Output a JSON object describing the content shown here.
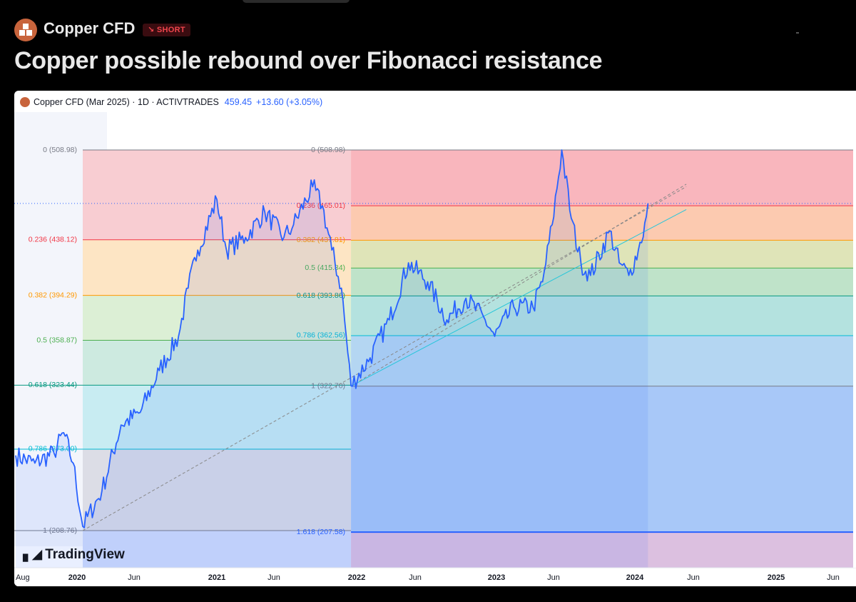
{
  "header": {
    "symbol": "Copper CFD",
    "badge": "↘ SHORT",
    "title": "Copper possible rebound over Fibonacci resistance"
  },
  "legend": {
    "instrument": "Copper CFD (Mar 2025) · 1D · ACTIVTRADES",
    "last": "459.45",
    "change": "+13.60 (+3.05%)"
  },
  "watermark": "TradingView",
  "colors": {
    "price_line": "#2962ff",
    "accent": "#c8643c",
    "short_red": "#f0454c"
  },
  "chart_data": {
    "type": "line",
    "y_range": [
      180,
      540
    ],
    "x_axis_labels": [
      "Aug",
      "2020",
      "Jun",
      "2021",
      "Jun",
      "2022",
      "Jun",
      "2023",
      "Jun",
      "2024",
      "Jun",
      "2025",
      "Jun"
    ],
    "price_series": [
      [
        "2019-08",
        268
      ],
      [
        "2019-10",
        262
      ],
      [
        "2019-12",
        270
      ],
      [
        "2020-01",
        286
      ],
      [
        "2020-02",
        262
      ],
      [
        "2020-03",
        212
      ],
      [
        "2020-05",
        240
      ],
      [
        "2020-07",
        292
      ],
      [
        "2020-09",
        302
      ],
      [
        "2020-11",
        335
      ],
      [
        "2021-01",
        362
      ],
      [
        "2021-02",
        400
      ],
      [
        "2021-03",
        430
      ],
      [
        "2021-05",
        470
      ],
      [
        "2021-06",
        430
      ],
      [
        "2021-08",
        440
      ],
      [
        "2021-10",
        460
      ],
      [
        "2021-12",
        440
      ],
      [
        "2022-01",
        450
      ],
      [
        "2022-03",
        480
      ],
      [
        "2022-04",
        465
      ],
      [
        "2022-05",
        430
      ],
      [
        "2022-06",
        400
      ],
      [
        "2022-07",
        323
      ],
      [
        "2022-09",
        345
      ],
      [
        "2022-11",
        375
      ],
      [
        "2023-01",
        420
      ],
      [
        "2023-03",
        405
      ],
      [
        "2023-05",
        375
      ],
      [
        "2023-07",
        392
      ],
      [
        "2023-09",
        375
      ],
      [
        "2023-10",
        362
      ],
      [
        "2023-12",
        385
      ],
      [
        "2024-02",
        385
      ],
      [
        "2024-03",
        405
      ],
      [
        "2024-04",
        450
      ],
      [
        "2024-05",
        509
      ],
      [
        "2024-06",
        455
      ],
      [
        "2024-07",
        420
      ],
      [
        "2024-08",
        410
      ],
      [
        "2024-10",
        445
      ],
      [
        "2024-11",
        420
      ],
      [
        "2024-12",
        410
      ],
      [
        "2025-01",
        430
      ],
      [
        "2025-02",
        459.45
      ]
    ],
    "fib_retracement": {
      "high": 508.98,
      "low": 208.76,
      "levels": [
        {
          "label": "0 (508.98)",
          "value": 508.98
        },
        {
          "label": "0.236 (438.12)",
          "value": 438.12
        },
        {
          "label": "0.382 (394.29)",
          "value": 394.29
        },
        {
          "label": "0.5 (358.87)",
          "value": 358.87
        },
        {
          "label": "0.618 (323.44)",
          "value": 323.44
        },
        {
          "label": "0.786 (273.00)",
          "value": 273.0
        },
        {
          "label": "1 (208.76)",
          "value": 208.76
        }
      ]
    },
    "fib_extension": {
      "levels": [
        {
          "label": "0 (508.98)",
          "value": 508.98
        },
        {
          "label": "0.236 (465.01)",
          "value": 465.01
        },
        {
          "label": "0.382 (437.81)",
          "value": 437.81
        },
        {
          "label": "0.5 (415.84)",
          "value": 415.84
        },
        {
          "label": "0.618 (393.86)",
          "value": 393.86
        },
        {
          "label": "0.786 (362.56)",
          "value": 362.56
        },
        {
          "label": "1 (322.70)",
          "value": 322.7
        },
        {
          "label": "1.618 (207.58)",
          "value": 207.58
        }
      ]
    },
    "trendlines": [
      {
        "from": [
          "2022-07",
          322.7
        ],
        "to": [
          "2025-06",
          462
        ],
        "color": "#26c6da",
        "style": "solid"
      },
      {
        "from": [
          "2020-03",
          208.76
        ],
        "to": [
          "2025-06",
          480
        ],
        "color": "#888888",
        "style": "dashed"
      },
      {
        "from": [
          "2022-07",
          322.7
        ],
        "to": [
          "2025-06",
          482
        ],
        "color": "#888888",
        "style": "dashed"
      }
    ],
    "current_price": 459.45
  }
}
